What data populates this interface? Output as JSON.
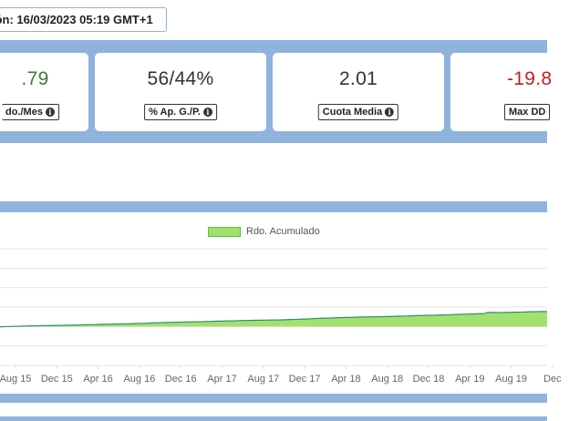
{
  "update": {
    "text": "ión: 16/03/2023 05:19 GMT+1"
  },
  "stats": [
    {
      "value": ".79",
      "label": "do./Mes",
      "color": "#3d7a3a"
    },
    {
      "value": "56/44%",
      "label": "% Ap. G./P.",
      "color": "#333333"
    },
    {
      "value": "2.01",
      "label": "Cuota Media",
      "color": "#333333"
    },
    {
      "value": "-19.8",
      "label": "Max DD",
      "color": "#c0202a"
    }
  ],
  "chart_data": {
    "type": "area",
    "series": [
      {
        "name": "Rdo. Acumulado",
        "color": "#a3e06f",
        "line_color": "#2f8f6f",
        "values": [
          -0.15,
          -0.1,
          -0.05,
          0,
          0.05,
          0.1,
          0.12,
          0.15,
          0.2,
          0.25,
          0.28,
          0.32,
          0.35,
          0.38,
          0.42,
          0.45,
          0.47,
          0.5,
          0.52,
          0.55,
          0.58,
          0.6,
          0.62,
          0.65,
          0.68,
          0.72,
          0.75,
          0.78,
          0.82,
          0.88,
          0.92,
          0.95,
          0.98,
          1.0,
          1.05,
          1.1,
          1.15,
          1.2,
          1.22,
          1.25,
          1.3,
          1.33,
          1.35,
          1.38,
          1.4,
          1.42,
          1.45,
          1.5,
          1.55,
          1.6,
          1.65,
          1.7,
          1.75,
          1.85,
          1.9,
          1.95,
          2.0,
          2.05,
          2.08,
          2.1,
          2.12,
          2.15,
          2.2,
          2.25,
          2.3,
          2.35,
          2.38,
          2.4,
          2.42,
          2.45,
          2.48,
          2.5,
          2.55,
          2.6,
          2.65,
          2.7,
          2.75,
          2.8,
          2.82,
          2.85,
          2.88,
          2.9,
          2.95,
          3.0,
          3.05,
          3.1,
          3.12,
          3.15,
          3.18,
          3.2,
          3.22,
          3.25,
          3.28,
          3.3,
          3.32,
          3.35,
          3.38,
          3.4,
          3.42,
          3.45,
          3.5,
          3.55,
          3.6,
          3.65,
          3.7,
          3.75,
          3.8,
          3.85,
          3.9,
          4.0,
          4.1,
          4.15,
          4.2,
          4.25,
          4.3,
          4.35,
          4.4,
          4.45,
          4.5,
          4.55,
          4.6,
          4.65,
          4.7,
          4.72,
          4.75,
          4.8,
          4.85,
          4.9,
          4.92,
          4.95,
          4.98,
          5.0,
          5.02,
          5.05,
          5.08,
          5.1,
          5.12,
          5.15,
          5.2,
          5.25,
          5.3,
          5.35,
          5.4,
          5.45,
          5.5,
          5.55,
          5.6,
          5.65,
          5.7,
          5.72,
          5.75,
          5.78,
          5.8,
          5.85,
          5.9,
          5.95,
          6.0,
          6.05,
          6.1,
          6.15,
          6.2,
          6.25,
          6.3,
          6.35,
          6.4,
          6.45,
          6.5,
          6.55,
          6.6,
          6.65,
          6.7,
          7.2,
          7.25,
          7.25,
          7.2,
          7.22,
          7.25,
          7.28,
          7.3,
          7.32,
          7.35,
          7.38,
          7.4,
          7.45,
          7.5,
          7.55,
          7.6,
          7.62,
          7.65,
          7.68,
          7.7,
          7.72,
          7.75
        ]
      }
    ],
    "x_ticks": [
      "Aug 15",
      "Dec 15",
      "Apr 16",
      "Aug 16",
      "Dec 16",
      "Apr 17",
      "Aug 17",
      "Dec 17",
      "Apr 18",
      "Aug 18",
      "Dec 18",
      "Apr 19",
      "Aug 19",
      "Dec"
    ],
    "ylim": [
      -20,
      40
    ],
    "grid": true,
    "legend": "top-center"
  }
}
